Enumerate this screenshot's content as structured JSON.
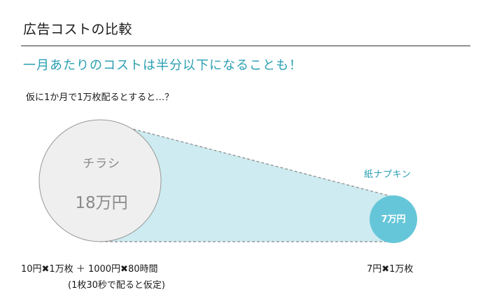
{
  "header": {
    "title": "広告コストの比較",
    "subtitle": "一月あたりのコストは半分以下になることも！"
  },
  "premise": "仮に1か月で1万枚配るとすると…？",
  "flyer": {
    "label": "チラシ",
    "value": "18万円",
    "calculation": "10円✖1万枚 ＋ 1000円✖80時間",
    "note": "(1枚30秒で配ると仮定)"
  },
  "napkin": {
    "label": "紙ナプキン",
    "value": "7万円",
    "calculation": "7円✖1万枚"
  },
  "colors": {
    "accent": "#2a9fb2",
    "napkin_circle": "#66c6d9",
    "cone_fill": "#cdebf1",
    "flyer_circle": "#efefef"
  }
}
